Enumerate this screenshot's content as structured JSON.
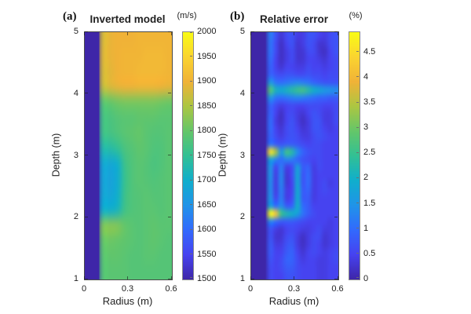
{
  "figure": {
    "background": "#ffffff",
    "colormap": "parula"
  },
  "panels": [
    {
      "tag": "(a)",
      "title": "Inverted model",
      "xlabel": "Radius (m)",
      "ylabel": "Depth (m)",
      "x_tick_labels": [
        "0",
        "0.3",
        "0.6"
      ],
      "y_tick_labels": [
        "5",
        "4",
        "3",
        "2",
        "1"
      ],
      "colorbar": {
        "unit": "(m/s)",
        "tick_labels": [
          "2000",
          "1950",
          "1900",
          "1850",
          "1800",
          "1750",
          "1700",
          "1650",
          "1600",
          "1550",
          "1500"
        ]
      }
    },
    {
      "tag": "(b)",
      "title": "Relative error",
      "xlabel": "Radius (m)",
      "ylabel": "Depth (m)",
      "x_tick_labels": [
        "0",
        "0.3",
        "0.6"
      ],
      "y_tick_labels": [
        "5",
        "4",
        "3",
        "2",
        "1"
      ],
      "colorbar": {
        "unit": "(%)",
        "tick_labels": [
          "4.5",
          "4",
          "3.5",
          "3",
          "2.5",
          "2",
          "1.5",
          "1",
          "0.5",
          "0"
        ]
      }
    }
  ],
  "chart_data": [
    {
      "type": "heatmap",
      "title": "Inverted model",
      "xlabel": "Radius (m)",
      "ylabel": "Depth (m)",
      "colorbar_unit": "(m/s)",
      "colormap": "parula",
      "x_range": [
        0,
        0.6
      ],
      "y_top_to_bottom": [
        5,
        1
      ],
      "x_tick_values": [
        0,
        0.3,
        0.6
      ],
      "y_tick_values": [
        5,
        4,
        3,
        2,
        1
      ],
      "value_range": [
        1500,
        2000
      ],
      "colorbar_tick_values": [
        2000,
        1950,
        1900,
        1850,
        1800,
        1750,
        1700,
        1650,
        1600,
        1550,
        1500
      ],
      "left_strip": {
        "x_extent": [
          0,
          0.1
        ],
        "value": 1500
      },
      "grid_layout": {
        "cols": 12,
        "rows": 16,
        "row_order": "depth 5 (top) to 1 (bottom)"
      },
      "grid": [
        [
          1500,
          1500,
          1880,
          1895,
          1900,
          1900,
          1900,
          1905,
          1905,
          1905,
          1905,
          1905
        ],
        [
          1500,
          1500,
          1885,
          1895,
          1900,
          1905,
          1905,
          1905,
          1910,
          1910,
          1910,
          1905
        ],
        [
          1500,
          1500,
          1880,
          1890,
          1900,
          1905,
          1905,
          1910,
          1910,
          1910,
          1910,
          1905
        ],
        [
          1500,
          1500,
          1870,
          1885,
          1895,
          1900,
          1900,
          1905,
          1905,
          1905,
          1900,
          1895
        ],
        [
          1500,
          1500,
          1790,
          1800,
          1810,
          1815,
          1815,
          1815,
          1815,
          1815,
          1810,
          1805
        ],
        [
          1500,
          1500,
          1770,
          1775,
          1785,
          1790,
          1790,
          1795,
          1795,
          1795,
          1790,
          1790
        ],
        [
          1500,
          1500,
          1765,
          1770,
          1780,
          1790,
          1795,
          1800,
          1790,
          1785,
          1785,
          1790
        ],
        [
          1500,
          1500,
          1730,
          1735,
          1750,
          1775,
          1785,
          1795,
          1790,
          1780,
          1780,
          1790
        ],
        [
          1500,
          1500,
          1690,
          1685,
          1700,
          1760,
          1780,
          1790,
          1785,
          1775,
          1780,
          1790
        ],
        [
          1500,
          1500,
          1680,
          1675,
          1695,
          1755,
          1780,
          1790,
          1785,
          1780,
          1785,
          1790
        ],
        [
          1500,
          1500,
          1685,
          1680,
          1700,
          1760,
          1780,
          1785,
          1790,
          1785,
          1785,
          1790
        ],
        [
          1500,
          1500,
          1700,
          1700,
          1715,
          1765,
          1780,
          1785,
          1790,
          1790,
          1785,
          1790
        ],
        [
          1500,
          1500,
          1820,
          1825,
          1820,
          1800,
          1790,
          1785,
          1790,
          1795,
          1790,
          1790
        ],
        [
          1500,
          1500,
          1800,
          1805,
          1800,
          1795,
          1790,
          1785,
          1790,
          1795,
          1790,
          1785
        ],
        [
          1500,
          1500,
          1790,
          1795,
          1795,
          1790,
          1785,
          1785,
          1790,
          1790,
          1785,
          1785
        ],
        [
          1500,
          1500,
          1785,
          1790,
          1790,
          1790,
          1785,
          1785,
          1785,
          1785,
          1785,
          1785
        ]
      ]
    },
    {
      "type": "heatmap",
      "title": "Relative error",
      "xlabel": "Radius (m)",
      "ylabel": "Depth (m)",
      "colorbar_unit": "(%)",
      "colormap": "parula",
      "x_range": [
        0,
        0.6
      ],
      "y_top_to_bottom": [
        5,
        1
      ],
      "x_tick_values": [
        0,
        0.3,
        0.6
      ],
      "y_tick_values": [
        5,
        4,
        3,
        2,
        1
      ],
      "value_range": [
        0,
        4.9
      ],
      "colorbar_tick_values": [
        4.5,
        4,
        3.5,
        3,
        2.5,
        2,
        1.5,
        1,
        0.5,
        0
      ],
      "left_strip": {
        "x_extent": [
          0,
          0.1
        ],
        "value": 0
      },
      "grid_layout": {
        "cols": 16,
        "rows": 32,
        "row_order": "depth 5 (top) to 1 (bottom)"
      },
      "grid": [
        [
          0,
          0,
          0,
          1.2,
          0.7,
          0.3,
          0.6,
          0.7,
          0.4,
          0.4,
          0.7,
          0.7,
          0.5,
          0.4,
          0.6,
          0.7
        ],
        [
          0,
          0,
          0,
          1.1,
          0.6,
          0.2,
          0.5,
          0.7,
          0.3,
          0.4,
          0.7,
          0.6,
          0.3,
          0.3,
          0.6,
          0.7
        ],
        [
          0,
          0,
          0,
          1.1,
          0.6,
          0.2,
          0.4,
          0.6,
          0.3,
          0.3,
          0.6,
          0.6,
          0.3,
          0.2,
          0.5,
          0.7
        ],
        [
          0,
          0,
          0,
          1.0,
          0.5,
          0.2,
          0.4,
          0.6,
          0.3,
          0.3,
          0.5,
          0.5,
          0.4,
          0.3,
          0.5,
          0.6
        ],
        [
          0,
          0,
          0,
          0.9,
          0.5,
          0.3,
          0.5,
          0.5,
          0.4,
          0.4,
          0.6,
          0.5,
          0.5,
          0.4,
          0.5,
          0.6
        ],
        [
          0,
          0,
          0,
          0.9,
          0.7,
          0.6,
          0.7,
          0.7,
          0.6,
          0.6,
          0.7,
          0.6,
          0.6,
          0.5,
          0.6,
          0.6
        ],
        [
          0,
          0,
          0,
          1.6,
          1.1,
          1.0,
          1.1,
          1.2,
          1.3,
          1.2,
          1.1,
          0.9,
          0.8,
          0.7,
          0.7,
          0.7
        ],
        [
          0,
          0,
          0,
          2.8,
          2.1,
          1.9,
          2.1,
          2.3,
          2.5,
          2.6,
          2.3,
          2.0,
          1.8,
          1.6,
          1.5,
          1.4
        ],
        [
          0,
          0,
          0,
          1.5,
          1.1,
          1.0,
          1.1,
          1.2,
          1.3,
          1.2,
          1.1,
          1.0,
          0.9,
          0.9,
          0.8,
          0.8
        ],
        [
          0,
          0,
          0,
          0.9,
          0.6,
          0.4,
          0.5,
          0.6,
          0.5,
          0.5,
          0.6,
          0.6,
          0.6,
          0.5,
          0.5,
          0.6
        ],
        [
          0,
          0,
          0,
          0.9,
          0.5,
          0.2,
          0.5,
          0.6,
          0.4,
          0.3,
          0.5,
          0.7,
          0.6,
          0.4,
          0.4,
          0.6
        ],
        [
          0,
          0,
          0,
          1.0,
          0.4,
          0.2,
          0.5,
          0.7,
          0.4,
          0.2,
          0.4,
          0.7,
          0.7,
          0.4,
          0.4,
          0.6
        ],
        [
          0,
          0,
          0,
          1.0,
          0.5,
          0.3,
          0.6,
          0.7,
          0.5,
          0.3,
          0.4,
          0.7,
          0.7,
          0.5,
          0.4,
          0.5
        ],
        [
          0,
          0,
          0,
          0.9,
          0.6,
          0.4,
          0.6,
          0.7,
          0.6,
          0.4,
          0.4,
          0.6,
          0.7,
          0.6,
          0.5,
          0.5
        ],
        [
          0,
          0,
          0,
          1.1,
          0.8,
          0.7,
          0.8,
          0.8,
          0.7,
          0.6,
          0.5,
          0.6,
          0.6,
          0.5,
          0.5,
          0.5
        ],
        [
          0,
          0,
          0,
          4.6,
          3.4,
          1.6,
          2.6,
          2.3,
          1.4,
          0.9,
          0.7,
          0.6,
          0.6,
          0.5,
          0.5,
          0.5
        ],
        [
          0,
          0,
          0,
          1.7,
          1.3,
          1.0,
          1.3,
          1.2,
          0.9,
          0.7,
          0.6,
          0.5,
          0.6,
          0.5,
          0.5,
          0.5
        ],
        [
          0,
          0,
          0,
          1.5,
          0.5,
          1.2,
          0.4,
          0.6,
          1.7,
          0.8,
          0.9,
          0.4,
          0.6,
          0.5,
          0.5,
          0.5
        ],
        [
          0,
          0,
          0,
          1.5,
          0.4,
          1.3,
          0.3,
          0.6,
          1.8,
          0.7,
          1.0,
          0.4,
          0.5,
          0.5,
          0.5,
          0.5
        ],
        [
          0,
          0,
          0,
          1.4,
          0.4,
          1.3,
          0.3,
          0.5,
          1.8,
          0.7,
          1.0,
          0.4,
          0.5,
          0.6,
          0.4,
          0.5
        ],
        [
          0,
          0,
          0,
          1.4,
          0.4,
          1.2,
          0.4,
          0.5,
          1.9,
          0.8,
          0.9,
          0.4,
          0.5,
          0.6,
          0.5,
          0.5
        ],
        [
          0,
          0,
          0,
          1.5,
          0.5,
          1.2,
          0.4,
          0.6,
          1.9,
          0.8,
          0.8,
          0.4,
          0.5,
          0.5,
          0.5,
          0.5
        ],
        [
          0,
          0,
          0,
          1.7,
          1.0,
          1.4,
          0.8,
          0.9,
          2.0,
          1.0,
          0.8,
          0.5,
          0.5,
          0.5,
          0.5,
          0.5
        ],
        [
          0,
          0,
          0,
          5.0,
          4.3,
          2.6,
          2.2,
          2.0,
          1.7,
          1.1,
          0.8,
          0.6,
          0.5,
          0.5,
          0.5,
          0.5
        ],
        [
          0,
          0,
          0,
          1.3,
          1.0,
          0.8,
          0.8,
          0.8,
          0.7,
          0.6,
          0.5,
          0.5,
          0.5,
          0.5,
          0.4,
          0.5
        ],
        [
          0,
          0,
          0,
          0.7,
          0.4,
          0.3,
          0.5,
          0.6,
          0.5,
          0.4,
          0.4,
          0.5,
          0.6,
          0.4,
          0.4,
          0.5
        ],
        [
          0,
          0,
          0,
          0.7,
          0.3,
          0.3,
          0.6,
          0.7,
          0.4,
          0.2,
          0.4,
          0.6,
          0.6,
          0.3,
          0.4,
          0.5
        ],
        [
          0,
          0,
          0,
          0.8,
          0.4,
          0.4,
          0.7,
          0.8,
          0.4,
          0.2,
          0.4,
          0.6,
          0.5,
          0.3,
          0.4,
          0.5
        ],
        [
          0,
          0,
          0,
          0.8,
          0.5,
          0.5,
          0.8,
          0.9,
          0.5,
          0.3,
          0.5,
          0.6,
          0.5,
          0.4,
          0.5,
          0.6
        ],
        [
          0,
          0,
          0,
          0.7,
          0.5,
          0.6,
          0.9,
          0.9,
          0.6,
          0.4,
          0.5,
          0.5,
          0.4,
          0.4,
          0.5,
          0.6
        ],
        [
          0,
          0,
          0,
          0.6,
          0.5,
          0.6,
          0.8,
          0.8,
          0.6,
          0.5,
          0.5,
          0.5,
          0.4,
          0.4,
          0.5,
          0.5
        ],
        [
          0,
          0,
          0,
          0.6,
          0.5,
          0.5,
          0.7,
          0.7,
          0.6,
          0.5,
          0.5,
          0.5,
          0.4,
          0.4,
          0.5,
          0.5
        ]
      ]
    }
  ]
}
